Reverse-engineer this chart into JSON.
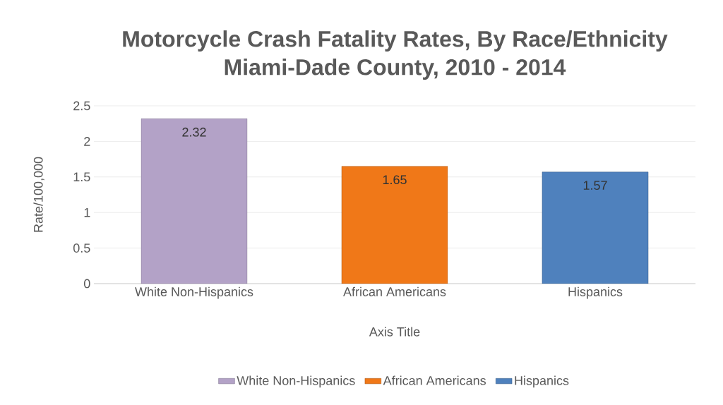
{
  "chart_data": {
    "type": "bar",
    "title": "Motorcycle Crash Fatality Rates, By Race/Ethnicity",
    "subtitle": "Miami-Dade County, 2010 - 2014",
    "xlabel": "Axis Title",
    "ylabel": "Rate/100,000",
    "categories": [
      "White Non-Hispanics",
      "African Americans",
      "Hispanics"
    ],
    "series": [
      {
        "name": "White Non-Hispanics",
        "color": "#b3a2c7",
        "values": [
          2.32,
          null,
          null
        ]
      },
      {
        "name": "African Americans",
        "color": "#f07818",
        "values": [
          null,
          1.65,
          null
        ]
      },
      {
        "name": "Hispanics",
        "color": "#4f81bd",
        "values": [
          null,
          null,
          1.57
        ]
      }
    ],
    "ylim": [
      0,
      2.5
    ],
    "yticks": [
      0,
      0.5,
      1,
      1.5,
      2,
      2.5
    ],
    "grid": "y",
    "legend": "bottom",
    "data_labels": true
  }
}
